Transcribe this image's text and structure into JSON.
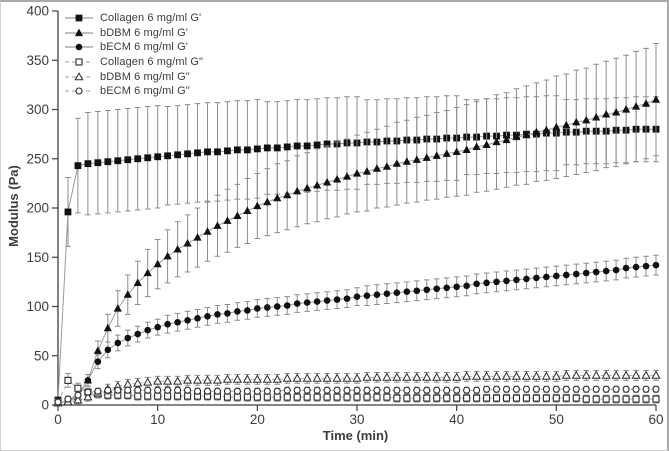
{
  "figure": {
    "background": "#ffffff",
    "frame_color": "#a9a9a9"
  },
  "colors": {
    "marker": "#111111",
    "open_marker_stroke": "#2b2b2b",
    "solid_line": "#9b9b9b",
    "dashed_line": "#b0b0b0",
    "error_bar": "#8c8c8c",
    "axis": "#3f3f3f",
    "text": "#3c3c3c"
  },
  "chart_data": {
    "type": "line",
    "title": "",
    "xlabel": "Time (min)",
    "ylabel": "Modulus (Pa)",
    "xlim": [
      0,
      60
    ],
    "ylim": [
      0,
      400
    ],
    "x_ticks": [
      0,
      10,
      20,
      30,
      40,
      50,
      60
    ],
    "y_ticks": [
      0,
      50,
      100,
      150,
      200,
      250,
      300,
      350,
      400
    ],
    "grid": false,
    "legend_position": "top-left",
    "x": [
      0,
      1,
      2,
      3,
      4,
      5,
      6,
      7,
      8,
      9,
      10,
      11,
      12,
      13,
      14,
      15,
      16,
      17,
      18,
      19,
      20,
      21,
      22,
      23,
      24,
      25,
      26,
      27,
      28,
      29,
      30,
      31,
      32,
      33,
      34,
      35,
      36,
      37,
      38,
      39,
      40,
      41,
      42,
      43,
      44,
      45,
      46,
      47,
      48,
      49,
      50,
      51,
      52,
      53,
      54,
      55,
      56,
      57,
      58,
      59,
      60
    ],
    "series": [
      {
        "id": "collagen-g-prime",
        "name": "Collagen 6 mg/ml G'",
        "marker": "filled-square",
        "line_style": "solid",
        "values": [
          5,
          196,
          243,
          245,
          246,
          247,
          248,
          249,
          250,
          251,
          252,
          253,
          254,
          255,
          256,
          257,
          257,
          258,
          259,
          259,
          260,
          261,
          261,
          262,
          263,
          263,
          264,
          265,
          265,
          266,
          266,
          267,
          267,
          268,
          268,
          269,
          269,
          270,
          270,
          271,
          271,
          272,
          272,
          273,
          273,
          274,
          274,
          275,
          275,
          276,
          276,
          277,
          277,
          278,
          278,
          278,
          279,
          279,
          280,
          280,
          280
        ],
        "errors": [
          3,
          35,
          48,
          52,
          52,
          52,
          52,
          52,
          52,
          52,
          52,
          50,
          50,
          50,
          50,
          50,
          50,
          50,
          50,
          50,
          50,
          47,
          47,
          47,
          47,
          47,
          47,
          47,
          47,
          47,
          47,
          43,
          43,
          43,
          43,
          43,
          43,
          43,
          43,
          43,
          43,
          38,
          38,
          38,
          38,
          38,
          38,
          38,
          38,
          38,
          38,
          33,
          33,
          33,
          33,
          33,
          33,
          33,
          33,
          33,
          33
        ]
      },
      {
        "id": "bdbm-g-prime",
        "name": "bDBM 6 mg/ml G'",
        "marker": "filled-triangle",
        "line_style": "solid",
        "values": [
          2,
          4,
          8,
          25,
          55,
          78,
          98,
          112,
          124,
          134,
          143,
          151,
          158,
          164,
          170,
          176,
          182,
          187,
          192,
          197,
          202,
          206,
          210,
          213,
          217,
          220,
          223,
          226,
          229,
          232,
          235,
          237,
          240,
          242,
          245,
          247,
          249,
          251,
          253,
          255,
          257,
          259,
          262,
          264,
          267,
          269,
          272,
          274,
          277,
          279,
          282,
          284,
          287,
          289,
          292,
          295,
          297,
          300,
          303,
          306,
          310
        ],
        "errors": [
          2,
          3,
          4,
          6,
          10,
          14,
          18,
          20,
          22,
          24,
          25,
          27,
          28,
          29,
          30,
          30,
          31,
          32,
          32,
          33,
          33,
          34,
          35,
          35,
          36,
          36,
          37,
          37,
          38,
          38,
          39,
          40,
          40,
          41,
          42,
          42,
          43,
          43,
          44,
          44,
          45,
          46,
          46,
          47,
          48,
          48,
          49,
          50,
          50,
          51,
          52,
          52,
          53,
          53,
          54,
          54,
          55,
          55,
          56,
          56,
          57
        ]
      },
      {
        "id": "becm-g-prime",
        "name": "bECM 6 mg/ml G'",
        "marker": "filled-circle",
        "line_style": "solid",
        "values": [
          2,
          4,
          10,
          25,
          44,
          56,
          63,
          68,
          72,
          76,
          79,
          82,
          84,
          86,
          88,
          90,
          92,
          93,
          95,
          96,
          98,
          99,
          100,
          101,
          103,
          104,
          105,
          106,
          107,
          108,
          110,
          111,
          112,
          113,
          114,
          115,
          116,
          117,
          118,
          119,
          120,
          121,
          123,
          124,
          125,
          126,
          127,
          128,
          129,
          130,
          131,
          132,
          133,
          134,
          135,
          136,
          137,
          139,
          140,
          141,
          142
        ],
        "errors": [
          2,
          3,
          4,
          6,
          7,
          8,
          8,
          8,
          8,
          8,
          8,
          9,
          9,
          9,
          9,
          9,
          9,
          9,
          9,
          9,
          9,
          9,
          9,
          9,
          9,
          9,
          9,
          9,
          9,
          9,
          9,
          10,
          10,
          10,
          10,
          10,
          10,
          10,
          10,
          10,
          10,
          10,
          10,
          10,
          10,
          10,
          10,
          10,
          10,
          10,
          10,
          10,
          10,
          10,
          10,
          10,
          10,
          10,
          10,
          10,
          10
        ]
      },
      {
        "id": "collagen-g-double-prime",
        "name": "Collagen 6 mg/ml G\"",
        "marker": "open-square",
        "line_style": "dashed",
        "values": [
          3,
          25,
          17,
          13,
          11,
          10,
          10,
          10,
          9,
          9,
          9,
          9,
          9,
          9,
          9,
          9,
          9,
          8,
          8,
          8,
          8,
          8,
          8,
          8,
          8,
          8,
          8,
          8,
          8,
          8,
          8,
          8,
          8,
          8,
          7,
          7,
          7,
          7,
          7,
          7,
          7,
          7,
          7,
          7,
          7,
          7,
          7,
          7,
          7,
          7,
          7,
          7,
          7,
          6,
          6,
          6,
          6,
          6,
          6,
          6,
          6
        ],
        "errors": [
          2,
          7,
          5,
          4,
          4,
          4,
          4,
          4,
          4,
          4,
          4,
          4,
          4,
          4,
          4,
          4,
          4,
          4,
          4,
          4,
          4,
          4,
          4,
          4,
          4,
          4,
          4,
          4,
          4,
          4,
          4,
          4,
          4,
          4,
          4,
          4,
          4,
          4,
          4,
          4,
          4,
          4,
          4,
          4,
          4,
          4,
          4,
          4,
          4,
          4,
          4,
          4,
          4,
          4,
          4,
          4,
          4,
          4,
          4,
          4,
          4
        ]
      },
      {
        "id": "bdbm-g-double-prime",
        "name": "bDBM 6 mg/ml G\"",
        "marker": "open-triangle",
        "line_style": "dashed",
        "values": [
          2,
          3,
          5,
          8,
          12,
          16,
          19,
          21,
          22,
          23,
          24,
          24,
          24,
          25,
          25,
          25,
          25,
          26,
          26,
          26,
          26,
          26,
          26,
          27,
          27,
          27,
          27,
          27,
          27,
          27,
          27,
          28,
          28,
          28,
          28,
          28,
          28,
          28,
          28,
          28,
          28,
          29,
          29,
          29,
          29,
          29,
          29,
          29,
          29,
          29,
          29,
          30,
          30,
          30,
          30,
          30,
          30,
          30,
          30,
          30,
          30
        ],
        "errors": [
          3,
          3,
          4,
          4,
          4,
          5,
          5,
          5,
          5,
          5,
          5,
          5,
          5,
          5,
          5,
          5,
          5,
          5,
          5,
          5,
          5,
          5,
          5,
          5,
          5,
          5,
          5,
          5,
          5,
          5,
          5,
          5,
          5,
          5,
          5,
          5,
          5,
          5,
          5,
          5,
          5,
          5,
          5,
          5,
          5,
          5,
          5,
          5,
          5,
          5,
          5,
          5,
          5,
          5,
          5,
          5,
          5,
          5,
          5,
          5,
          5
        ]
      },
      {
        "id": "becm-g-double-prime",
        "name": "bECM 6 mg/ml G\"",
        "marker": "open-circle",
        "line_style": "dashed",
        "values": [
          3,
          6,
          10,
          13,
          14,
          15,
          15,
          15,
          15,
          15,
          15,
          15,
          15,
          15,
          14,
          14,
          14,
          14,
          14,
          14,
          14,
          14,
          14,
          15,
          15,
          15,
          15,
          15,
          15,
          15,
          15,
          15,
          15,
          15,
          15,
          15,
          15,
          15,
          15,
          15,
          15,
          15,
          15,
          16,
          16,
          16,
          16,
          16,
          16,
          16,
          16,
          16,
          16,
          16,
          16,
          16,
          16,
          16,
          16,
          16,
          16
        ],
        "errors": [
          3,
          3,
          3,
          3,
          3,
          3,
          3,
          3,
          3,
          3,
          3,
          3,
          3,
          3,
          3,
          3,
          3,
          3,
          3,
          3,
          3,
          3,
          3,
          3,
          3,
          3,
          3,
          3,
          3,
          3,
          3,
          3,
          3,
          3,
          3,
          3,
          3,
          3,
          3,
          3,
          3,
          3,
          3,
          3,
          3,
          3,
          3,
          3,
          3,
          3,
          3,
          3,
          3,
          3,
          3,
          3,
          3,
          3,
          3,
          3,
          3
        ]
      }
    ]
  }
}
